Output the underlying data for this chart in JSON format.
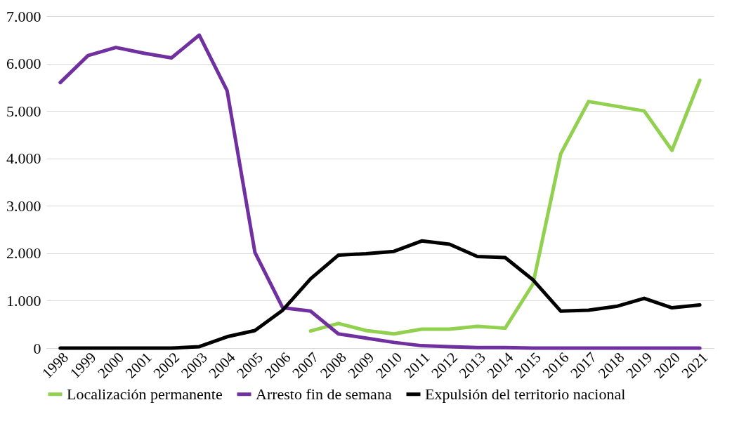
{
  "chart_data": {
    "type": "line",
    "categories": [
      "1998",
      "1999",
      "2000",
      "2001",
      "2002",
      "2003",
      "2004",
      "2005",
      "2006",
      "2007",
      "2008",
      "2009",
      "2010",
      "2011",
      "2012",
      "2013",
      "2014",
      "2015",
      "2016",
      "2017",
      "2018",
      "2019",
      "2020",
      "2021"
    ],
    "series": [
      {
        "name": "Localización permanente",
        "color": "#92d050",
        "values": [
          null,
          null,
          null,
          null,
          null,
          null,
          null,
          null,
          null,
          360,
          520,
          370,
          300,
          400,
          400,
          460,
          420,
          1350,
          4100,
          5200,
          5100,
          5000,
          4170,
          5650
        ]
      },
      {
        "name": "Arresto fin de semana",
        "color": "#7030a0",
        "values": [
          5600,
          6170,
          6340,
          6220,
          6120,
          6600,
          5430,
          2020,
          850,
          780,
          300,
          210,
          120,
          50,
          30,
          10,
          10,
          0,
          0,
          0,
          0,
          0,
          0,
          0
        ]
      },
      {
        "name": "Expulsión del territorio nacional",
        "color": "#000000",
        "values": [
          0,
          0,
          0,
          0,
          0,
          30,
          240,
          370,
          800,
          1460,
          1960,
          1990,
          2040,
          2260,
          2190,
          1930,
          1910,
          1440,
          780,
          800,
          880,
          1050,
          850,
          910
        ]
      }
    ],
    "ylim": [
      0,
      7000
    ],
    "yticks": [
      {
        "value": 0,
        "label": "0"
      },
      {
        "value": 1000,
        "label": "1.000"
      },
      {
        "value": 2000,
        "label": "2.000"
      },
      {
        "value": 3000,
        "label": "3.000"
      },
      {
        "value": 4000,
        "label": "4.000"
      },
      {
        "value": 5000,
        "label": "5.000"
      },
      {
        "value": 6000,
        "label": "6.000"
      },
      {
        "value": 7000,
        "label": "7.000"
      }
    ],
    "grid": "y",
    "legend": "bottom",
    "line_style": "solid"
  }
}
